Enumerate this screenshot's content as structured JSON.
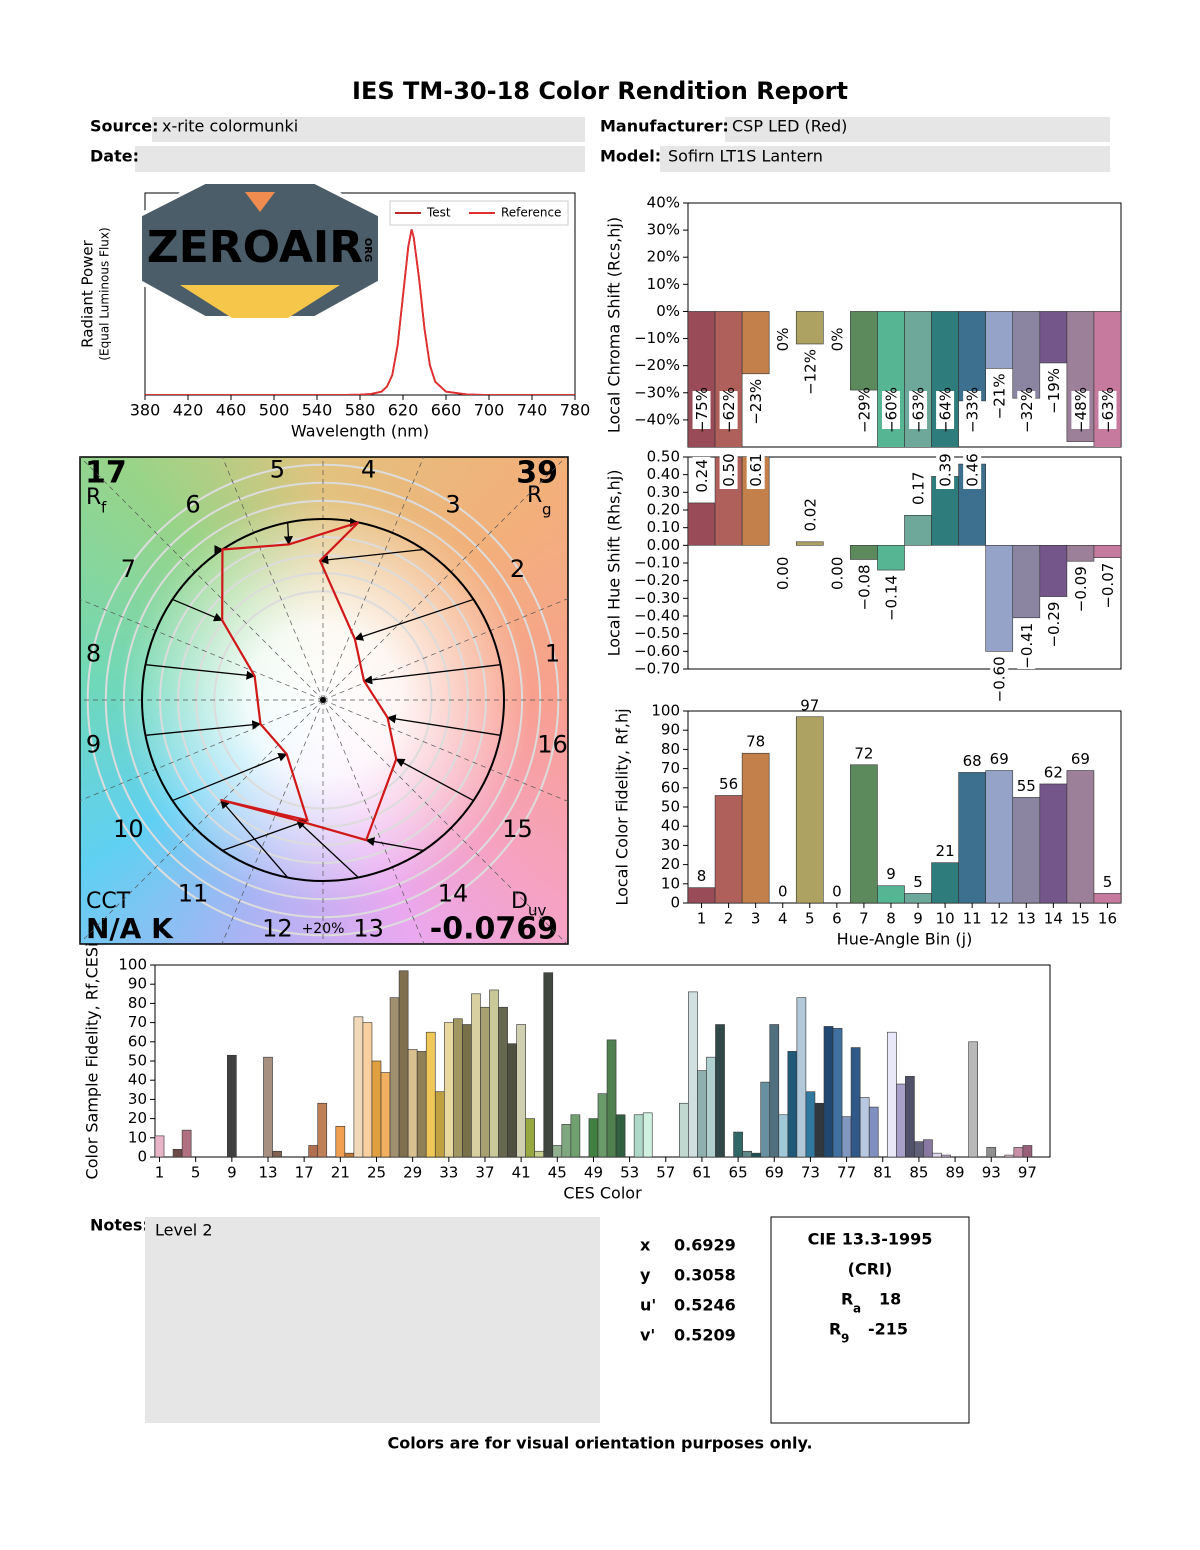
{
  "header": {
    "title": "IES TM-30-18 Color Rendition Report",
    "source_label": "Source:",
    "source": "x-rite colormunki",
    "date_label": "Date:",
    "manufacturer_label": "Manufacturer:",
    "manufacturer": "CSP LED (Red)",
    "model_label": "Model:",
    "model": "Sofirn LT1S Lantern"
  },
  "logo": {
    "text": "ZEROAIR",
    "suffix": "ORG"
  },
  "chart_data": [
    {
      "type": "line",
      "xlabel": "Wavelength (nm)",
      "ylabel": [
        "Radiant Power",
        "(Equal Luminous Flux)"
      ],
      "x": [
        380,
        400,
        420,
        440,
        460,
        480,
        500,
        520,
        540,
        560,
        580,
        590,
        600,
        605,
        610,
        615,
        620,
        625,
        628,
        630,
        635,
        640,
        645,
        650,
        660,
        680,
        700,
        740,
        780
      ],
      "series": [
        {
          "name": "Test",
          "color": "#c0282d",
          "values": [
            0,
            0,
            0,
            0,
            0,
            0,
            0,
            0,
            0,
            0,
            0.002,
            0.006,
            0.02,
            0.05,
            0.12,
            0.3,
            0.6,
            0.9,
            1.0,
            0.95,
            0.7,
            0.4,
            0.18,
            0.08,
            0.02,
            0.003,
            0,
            0,
            0
          ]
        },
        {
          "name": "Reference",
          "color": "#e03030",
          "values": [
            0,
            0,
            0,
            0,
            0,
            0,
            0,
            0,
            0,
            0,
            0.002,
            0.006,
            0.02,
            0.05,
            0.12,
            0.3,
            0.6,
            0.9,
            1.0,
            0.95,
            0.7,
            0.4,
            0.18,
            0.08,
            0.02,
            0.003,
            0,
            0,
            0
          ]
        }
      ],
      "xlim": [
        380,
        780
      ],
      "xticks": [
        380,
        420,
        460,
        500,
        540,
        580,
        620,
        660,
        700,
        740,
        780
      ],
      "ylim": [
        0,
        1.22
      ],
      "legend": "upper right"
    },
    {
      "type": "bar",
      "ylabel": "Local Chroma Shift (Rcs,hj)",
      "values": [
        -75,
        -62,
        -23,
        0,
        -12,
        0,
        -29,
        -60,
        -63,
        -64,
        -33,
        -21,
        -32,
        -19,
        -48,
        -63
      ],
      "value_labels": [
        "−75%",
        "−62%",
        "−23%",
        "0%",
        "−12%",
        "0%",
        "−29%",
        "−60%",
        "−63%",
        "−64%",
        "−33%",
        "−21%",
        "−32%",
        "−19%",
        "−48%",
        "−63%"
      ],
      "colors": [
        "#9a4b58",
        "#b0605a",
        "#c3804a",
        "#cfae5e",
        "#aea262",
        "#7c9a56",
        "#5d8a5c",
        "#56b592",
        "#6da89b",
        "#2e7c7c",
        "#3d6f8f",
        "#96a3c8",
        "#8b85a2",
        "#74568a",
        "#9c7f98",
        "#c67b9e"
      ],
      "ylim": [
        -50,
        40
      ],
      "yticks": [
        {
          "value": 40,
          "label": "40%"
        },
        {
          "value": 30,
          "label": "30%"
        },
        {
          "value": 20,
          "label": "20%"
        },
        {
          "value": 10,
          "label": "10%"
        },
        {
          "value": 0,
          "label": "0%"
        },
        {
          "value": -10,
          "label": "−10%"
        },
        {
          "value": -20,
          "label": "−20%"
        },
        {
          "value": -30,
          "label": "−30%"
        },
        {
          "value": -40,
          "label": "−40%"
        }
      ]
    },
    {
      "type": "bar",
      "ylabel": "Local Hue Shift (Rhs,hj)",
      "values": [
        0.24,
        0.5,
        0.61,
        0.0,
        0.02,
        0.0,
        -0.08,
        -0.14,
        0.17,
        0.39,
        0.46,
        -0.6,
        -0.41,
        -0.29,
        -0.09,
        -0.07
      ],
      "value_labels": [
        "0.24",
        "0.50",
        "0.61",
        "0.00",
        "0.02",
        "0.00",
        "−0.08",
        "−0.14",
        "0.17",
        "0.39",
        "0.46",
        "−0.60",
        "−0.41",
        "−0.29",
        "−0.09",
        "−0.07"
      ],
      "colors": [
        "#9a4b58",
        "#b0605a",
        "#c3804a",
        "#cfae5e",
        "#aea262",
        "#7c9a56",
        "#5d8a5c",
        "#56b592",
        "#6da89b",
        "#2e7c7c",
        "#3d6f8f",
        "#96a3c8",
        "#8b85a2",
        "#74568a",
        "#9c7f98",
        "#c67b9e"
      ],
      "ylim": [
        -0.7,
        0.5
      ],
      "yticks": [
        {
          "value": 0.5,
          "label": "0.50"
        },
        {
          "value": 0.4,
          "label": "0.40"
        },
        {
          "value": 0.3,
          "label": "0.30"
        },
        {
          "value": 0.2,
          "label": "0.20"
        },
        {
          "value": 0.1,
          "label": "0.10"
        },
        {
          "value": 0,
          "label": "0.00"
        },
        {
          "value": -0.1,
          "label": "−0.10"
        },
        {
          "value": -0.2,
          "label": "−0.20"
        },
        {
          "value": -0.3,
          "label": "−0.30"
        },
        {
          "value": -0.4,
          "label": "−0.40"
        },
        {
          "value": -0.5,
          "label": "−0.50"
        },
        {
          "value": -0.6,
          "label": "−0.60"
        },
        {
          "value": -0.7,
          "label": "−0.70"
        }
      ]
    },
    {
      "type": "bar",
      "xlabel": "Hue-Angle Bin (j)",
      "ylabel": "Local Color Fidelity, Rf,hj",
      "data_labels": true,
      "categories": [
        1,
        2,
        3,
        4,
        5,
        6,
        7,
        8,
        9,
        10,
        11,
        12,
        13,
        14,
        15,
        16
      ],
      "values": [
        8,
        56,
        78,
        0,
        97,
        0,
        72,
        9,
        5,
        21,
        68,
        69,
        55,
        62,
        69,
        5
      ],
      "colors": [
        "#9a4b58",
        "#b0605a",
        "#c3804a",
        "#cfae5e",
        "#aea262",
        "#7c9a56",
        "#5d8a5c",
        "#56b592",
        "#6da89b",
        "#2e7c7c",
        "#3d6f8f",
        "#96a3c8",
        "#8b85a2",
        "#74568a",
        "#9c7f98",
        "#c67b9e"
      ],
      "ylim": [
        0,
        100
      ],
      "yticks": [
        0,
        10,
        20,
        30,
        40,
        50,
        60,
        70,
        80,
        90,
        100
      ]
    },
    {
      "type": "bar",
      "xlabel": "CES Color",
      "ylabel": "Color Sample Fidelity, Rf,CESi",
      "categories": [
        1,
        null,
        null,
        null,
        5,
        null,
        null,
        null,
        9,
        null,
        null,
        null,
        13,
        null,
        null,
        null,
        17,
        null,
        null,
        null,
        21,
        null,
        null,
        null,
        25,
        null,
        null,
        null,
        29,
        null,
        null,
        null,
        33,
        null,
        null,
        null,
        37,
        null,
        null,
        null,
        41,
        null,
        null,
        null,
        45,
        null,
        null,
        null,
        49,
        null,
        null,
        null,
        53,
        null,
        null,
        null,
        57,
        null,
        null,
        null,
        61,
        null,
        null,
        null,
        65,
        null,
        null,
        null,
        69,
        null,
        null,
        null,
        73,
        null,
        null,
        null,
        77,
        null,
        null,
        null,
        81,
        null,
        null,
        null,
        85,
        null,
        null,
        null,
        89,
        null,
        null,
        null,
        93,
        null,
        null,
        null,
        97,
        null,
        null
      ],
      "values": [
        11,
        0,
        4,
        14,
        0,
        0,
        0,
        0,
        53,
        0,
        0,
        0,
        52,
        3,
        0,
        0,
        0,
        6,
        28,
        0,
        16,
        2,
        73,
        70,
        50,
        44,
        83,
        97,
        56,
        55,
        65,
        34,
        70,
        72,
        69,
        85,
        78,
        87,
        78,
        59,
        69,
        20,
        3,
        96,
        6,
        17,
        22,
        0,
        20,
        33,
        61,
        22,
        0,
        22,
        23,
        0,
        0,
        0,
        28,
        86,
        45,
        52,
        69,
        0,
        13,
        3,
        2,
        39,
        69,
        22,
        55,
        83,
        34,
        28,
        68,
        67,
        21,
        57,
        31,
        26,
        0,
        65,
        38,
        42,
        8,
        9,
        2,
        1,
        0,
        0,
        60,
        0,
        5,
        0,
        1,
        5,
        6,
        0,
        0
      ],
      "colors": [
        "#e8b4c8",
        "#c9a0a8",
        "#6b4a48",
        "#b07080",
        "#d8a8b0",
        "#c89090",
        "#a05050",
        "#e0a090",
        "#404040",
        "#c08070",
        "#905040",
        "#d09878",
        "#a89080",
        "#806050",
        "#c88858",
        "#d8a070",
        "#a06040",
        "#b07050",
        "#c08058",
        "#e09050",
        "#f0a050",
        "#c07838",
        "#f0d8b8",
        "#f8d0a0",
        "#e0a040",
        "#f0b060",
        "#a09070",
        "#807050",
        "#d8c090",
        "#908058",
        "#f0c858",
        "#c0a040",
        "#e8d8a0",
        "#a09860",
        "#787048",
        "#d8d0a0",
        "#a8a070",
        "#c8c898",
        "#686850",
        "#505040",
        "#d0d0b0",
        "#98a840",
        "#c8d090",
        "#404840",
        "#90b090",
        "#80a880",
        "#70a070",
        "#b0d0b0",
        "#408040",
        "#6a9a6a",
        "#508050",
        "#306040",
        "#c0e0d0",
        "#b0d8c8",
        "#d0f0e0",
        "#a0c8b8",
        "#80b0a0",
        "#e0f0f0",
        "#c0d8d0",
        "#d0e0e0",
        "#90b0b0",
        "#b0d0d0",
        "#304848",
        "#80a8b0",
        "#306868",
        "#608888",
        "#205050",
        "#6890a0",
        "#507080",
        "#a0c8d8",
        "#205878",
        "#b0c8d8",
        "#3078a0",
        "#303840",
        "#204870",
        "#4070a0",
        "#8098c0",
        "#305888",
        "#b8c8e0",
        "#8090c0",
        "#c0c8e0",
        "#e8e8f8",
        "#a8a0c8",
        "#505068",
        "#606078",
        "#8878a0",
        "#e0d8f0",
        "#c0b0d0",
        "#d0c0d8",
        "#f0e8f0",
        "#b8b8b8",
        "#e8d0e0",
        "#909090",
        "#d8b8c8",
        "#e0c0d0",
        "#c890a8",
        "#986078",
        "#e0d0d8",
        "#a07088"
      ],
      "ylim": [
        0,
        100
      ],
      "yticks": [
        0,
        10,
        20,
        30,
        40,
        50,
        60,
        70,
        80,
        90,
        100
      ]
    }
  ],
  "vector_graphic": {
    "rf": 17,
    "rf_label": "R",
    "rf_sub": "f",
    "rg": 39,
    "rg_label": "R",
    "rg_sub": "g",
    "cct_label": "CCT",
    "cct": "N/A K",
    "duv_label": "D",
    "duv_sub": "uv",
    "duv": -0.0769,
    "bins": [
      1,
      2,
      3,
      4,
      5,
      6,
      7,
      8,
      9,
      10,
      11,
      12,
      13,
      14,
      15,
      16
    ],
    "scale_label": "+20%"
  },
  "chromaticity": [
    {
      "label": "x",
      "value": 0.6929
    },
    {
      "label": "y",
      "value": 0.3058
    },
    {
      "label": "u'",
      "value": 0.5246
    },
    {
      "label": "v'",
      "value": 0.5209
    }
  ],
  "cri": {
    "title": "CIE 13.3-1995",
    "subtitle": "(CRI)",
    "ra_label": "R",
    "ra_sub": "a",
    "ra": 18,
    "r9_label": "R",
    "r9_sub": "9",
    "r9": -215
  },
  "notes": {
    "label": "Notes:",
    "text": "Level 2"
  },
  "footer": "Colors are for visual orientation purposes only."
}
